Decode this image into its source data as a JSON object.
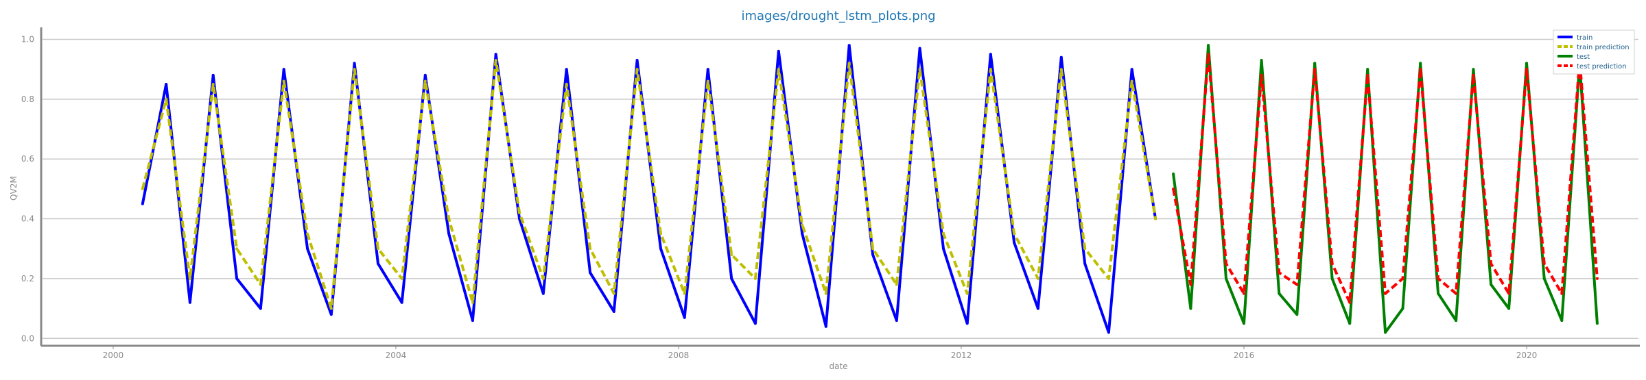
{
  "chart_data": {
    "type": "line",
    "title": "images/drought_lstm_plots.png",
    "xlabel": "date",
    "ylabel": "QV2M",
    "xlim": [
      "1999-01-01",
      "2021-08-01"
    ],
    "ylim": [
      -0.02,
      1.04
    ],
    "x_ticks": [
      "2000",
      "2004",
      "2008",
      "2012",
      "2016",
      "2020"
    ],
    "y_ticks": [
      "0.0",
      "0.2",
      "0.4",
      "0.6",
      "0.8",
      "1.0"
    ],
    "grid": "horizontal",
    "legend": "top-right",
    "series": [
      {
        "name": "train",
        "color": "#0000ff",
        "style": "solid",
        "x": [
          "2000-06-01",
          "2000-10-01",
          "2001-02-01",
          "2001-06-01",
          "2001-10-01",
          "2002-02-01",
          "2002-06-01",
          "2002-10-01",
          "2003-02-01",
          "2003-06-01",
          "2003-10-01",
          "2004-02-01",
          "2004-06-01",
          "2004-10-01",
          "2005-02-01",
          "2005-06-01",
          "2005-10-01",
          "2006-02-01",
          "2006-06-01",
          "2006-10-01",
          "2007-02-01",
          "2007-06-01",
          "2007-10-01",
          "2008-02-01",
          "2008-06-01",
          "2008-10-01",
          "2009-02-01",
          "2009-06-01",
          "2009-10-01",
          "2010-02-01",
          "2010-06-01",
          "2010-10-01",
          "2011-02-01",
          "2011-06-01",
          "2011-10-01",
          "2012-02-01",
          "2012-06-01",
          "2012-10-01",
          "2013-02-01",
          "2013-06-01",
          "2013-10-01",
          "2014-02-01",
          "2014-06-01",
          "2014-10-01"
        ],
        "y": [
          0.45,
          0.85,
          0.12,
          0.88,
          0.2,
          0.1,
          0.9,
          0.3,
          0.08,
          0.92,
          0.25,
          0.12,
          0.88,
          0.35,
          0.06,
          0.95,
          0.4,
          0.15,
          0.9,
          0.22,
          0.09,
          0.93,
          0.3,
          0.07,
          0.9,
          0.2,
          0.05,
          0.96,
          0.35,
          0.04,
          0.98,
          0.28,
          0.06,
          0.97,
          0.3,
          0.05,
          0.95,
          0.32,
          0.1,
          0.94,
          0.25,
          0.02,
          0.9,
          0.4
        ]
      },
      {
        "name": "train prediction",
        "color": "#bfbf00",
        "style": "dashed",
        "x": [
          "2000-06-01",
          "2000-10-01",
          "2001-02-01",
          "2001-06-01",
          "2001-10-01",
          "2002-02-01",
          "2002-06-01",
          "2002-10-01",
          "2003-02-01",
          "2003-06-01",
          "2003-10-01",
          "2004-02-01",
          "2004-06-01",
          "2004-10-01",
          "2005-02-01",
          "2005-06-01",
          "2005-10-01",
          "2006-02-01",
          "2006-06-01",
          "2006-10-01",
          "2007-02-01",
          "2007-06-01",
          "2007-10-01",
          "2008-02-01",
          "2008-06-01",
          "2008-10-01",
          "2009-02-01",
          "2009-06-01",
          "2009-10-01",
          "2010-02-01",
          "2010-06-01",
          "2010-10-01",
          "2011-02-01",
          "2011-06-01",
          "2011-10-01",
          "2012-02-01",
          "2012-06-01",
          "2012-10-01",
          "2013-02-01",
          "2013-06-01",
          "2013-10-01",
          "2014-02-01",
          "2014-06-01",
          "2014-10-01"
        ],
        "y": [
          0.5,
          0.8,
          0.2,
          0.85,
          0.3,
          0.18,
          0.86,
          0.35,
          0.1,
          0.9,
          0.3,
          0.2,
          0.86,
          0.4,
          0.12,
          0.93,
          0.42,
          0.2,
          0.85,
          0.3,
          0.15,
          0.9,
          0.35,
          0.15,
          0.86,
          0.28,
          0.2,
          0.9,
          0.38,
          0.15,
          0.92,
          0.3,
          0.18,
          0.9,
          0.35,
          0.15,
          0.9,
          0.35,
          0.2,
          0.9,
          0.3,
          0.2,
          0.86,
          0.4
        ]
      },
      {
        "name": "test",
        "color": "#008000",
        "style": "solid",
        "x": [
          "2015-01-01",
          "2015-04-01",
          "2015-07-01",
          "2015-10-01",
          "2016-01-01",
          "2016-04-01",
          "2016-07-01",
          "2016-10-01",
          "2017-01-01",
          "2017-04-01",
          "2017-07-01",
          "2017-10-01",
          "2018-01-01",
          "2018-04-01",
          "2018-07-01",
          "2018-10-01",
          "2019-01-01",
          "2019-04-01",
          "2019-07-01",
          "2019-10-01",
          "2020-01-01",
          "2020-04-01",
          "2020-07-01",
          "2020-10-01",
          "2020-12-31"
        ],
        "y": [
          0.55,
          0.1,
          0.98,
          0.2,
          0.05,
          0.93,
          0.15,
          0.08,
          0.92,
          0.2,
          0.05,
          0.9,
          0.02,
          0.1,
          0.92,
          0.15,
          0.06,
          0.9,
          0.18,
          0.1,
          0.92,
          0.2,
          0.06,
          0.92,
          0.05
        ]
      },
      {
        "name": "test prediction",
        "color": "#ff0000",
        "style": "dashed",
        "x": [
          "2015-01-01",
          "2015-04-01",
          "2015-07-01",
          "2015-10-01",
          "2016-01-01",
          "2016-04-01",
          "2016-07-01",
          "2016-10-01",
          "2017-01-01",
          "2017-04-01",
          "2017-07-01",
          "2017-10-01",
          "2018-01-01",
          "2018-04-01",
          "2018-07-01",
          "2018-10-01",
          "2019-01-01",
          "2019-04-01",
          "2019-07-01",
          "2019-10-01",
          "2020-01-01",
          "2020-04-01",
          "2020-07-01",
          "2020-10-01",
          "2020-12-31"
        ],
        "y": [
          0.5,
          0.18,
          0.95,
          0.25,
          0.15,
          0.88,
          0.22,
          0.18,
          0.9,
          0.25,
          0.12,
          0.88,
          0.15,
          0.2,
          0.9,
          0.2,
          0.15,
          0.88,
          0.25,
          0.15,
          0.9,
          0.25,
          0.15,
          0.93,
          0.2
        ]
      }
    ]
  }
}
